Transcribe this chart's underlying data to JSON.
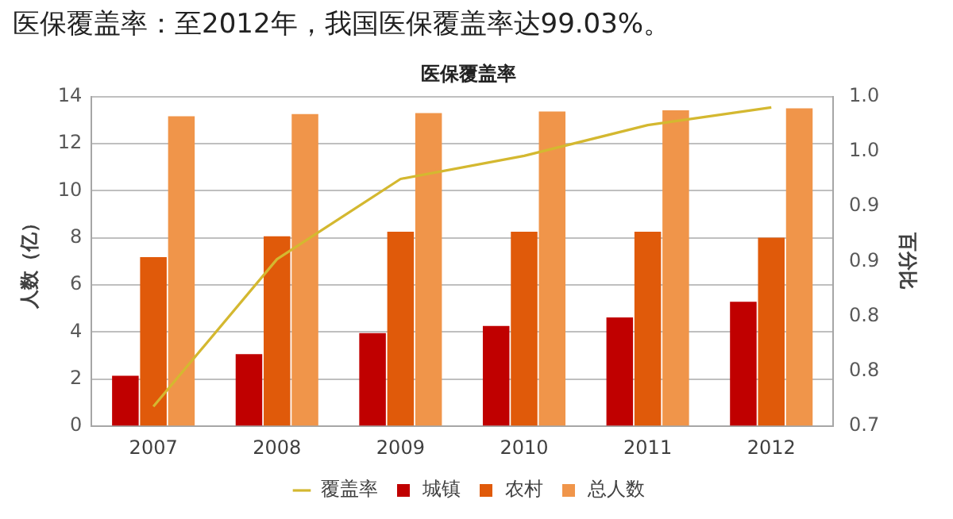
{
  "chart_data": {
    "type": "bar",
    "title": "医保覆盖率：至2012年，我国医保覆盖率达99.03%。",
    "subtitle": "医保覆盖率",
    "ylabel": "人数（亿）",
    "y2label": "百分比",
    "categories": [
      "2007",
      "2008",
      "2009",
      "2010",
      "2011",
      "2012"
    ],
    "series": [
      {
        "name": "城镇",
        "color": "#c00000",
        "values": [
          2.15,
          3.06,
          3.96,
          4.26,
          4.62,
          5.29
        ]
      },
      {
        "name": "农村",
        "color": "#e05a0a",
        "values": [
          7.18,
          8.07,
          8.26,
          8.26,
          8.26,
          8.01
        ]
      },
      {
        "name": "总人数",
        "color": "#f0954a",
        "values": [
          13.16,
          13.25,
          13.3,
          13.36,
          13.41,
          13.5
        ]
      },
      {
        "name": "覆盖率",
        "type": "line",
        "axis": "y2",
        "color": "#d4b830",
        "values": [
          0.718,
          0.852,
          0.925,
          0.946,
          0.974,
          0.99
        ]
      }
    ],
    "ylim": [
      0,
      14
    ],
    "yticks": [
      0,
      2,
      4,
      6,
      8,
      10,
      12,
      14
    ],
    "y2lim": [
      0.7,
      1.0
    ],
    "y2ticks": [
      {
        "value": 0.7,
        "label": "0.7"
      },
      {
        "value": 0.75,
        "label": "0.8"
      },
      {
        "value": 0.8,
        "label": "0.8"
      },
      {
        "value": 0.85,
        "label": "0.9"
      },
      {
        "value": 0.9,
        "label": "0.9"
      },
      {
        "value": 0.95,
        "label": "1.0"
      },
      {
        "value": 1.0,
        "label": "1.0"
      }
    ],
    "grid": "y",
    "legend": "bottom",
    "marker": "none"
  }
}
